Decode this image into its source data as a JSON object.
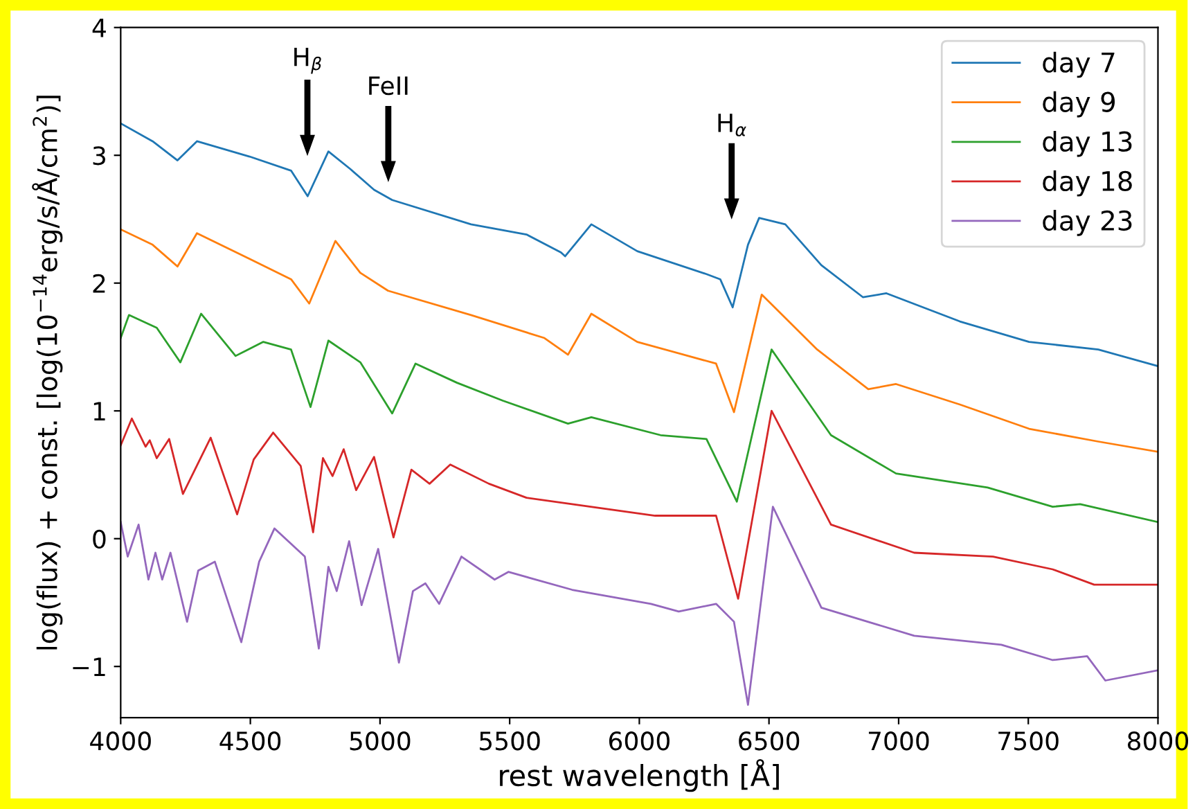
{
  "chart_data": {
    "type": "line",
    "xlabel": "rest wavelength [Å]",
    "ylabel": "log(flux) + const. [log(10$^{−14}$erg/s/Å/cm$^{2}$)]",
    "xlim": [
      4000,
      8000
    ],
    "xticks": [
      4000,
      4500,
      5000,
      5500,
      6000,
      6500,
      7000,
      7500,
      8000
    ],
    "ylim": [
      -1.4,
      4
    ],
    "yticks": [
      {
        "value": -1,
        "label": "−1"
      },
      0,
      1,
      2,
      3,
      4
    ],
    "grid": false,
    "legend": "top right",
    "line_style": "solid",
    "marker": "none",
    "annotations": [
      "H$_{β}$",
      "FeII",
      "H$_{α}$"
    ],
    "series": [
      {
        "name": "day 7",
        "color": "#1f77b4",
        "x": [
          4000,
          4123,
          4219,
          4294,
          4497,
          4657,
          4721,
          4801,
          4887,
          4977,
          5047,
          5351,
          5565,
          5698,
          5714,
          5815,
          5992,
          6259,
          6312,
          6360,
          6419,
          6462,
          6563,
          6702,
          6862,
          6953,
          7236,
          7503,
          7770,
          8000
        ],
        "values": [
          3.25,
          3.11,
          2.96,
          3.11,
          2.99,
          2.88,
          2.68,
          3.03,
          2.89,
          2.73,
          2.65,
          2.46,
          2.38,
          2.24,
          2.21,
          2.46,
          2.25,
          2.07,
          2.03,
          1.81,
          2.3,
          2.51,
          2.46,
          2.14,
          1.89,
          1.92,
          1.7,
          1.54,
          1.48,
          1.35
        ]
      },
      {
        "name": "day 9",
        "color": "#ff7f0e",
        "x": [
          4000,
          4123,
          4219,
          4294,
          4497,
          4657,
          4727,
          4828,
          4924,
          5031,
          5351,
          5634,
          5725,
          5815,
          5992,
          6296,
          6365,
          6472,
          6686,
          6883,
          6990,
          7236,
          7503,
          7770,
          8000
        ],
        "values": [
          2.42,
          2.3,
          2.13,
          2.39,
          2.19,
          2.03,
          1.84,
          2.33,
          2.08,
          1.94,
          1.75,
          1.57,
          1.44,
          1.76,
          1.54,
          1.37,
          0.99,
          1.91,
          1.48,
          1.17,
          1.21,
          1.05,
          0.86,
          0.76,
          0.68
        ]
      },
      {
        "name": "day 13",
        "color": "#2ca02c",
        "x": [
          4000,
          4032,
          4139,
          4230,
          4310,
          4443,
          4550,
          4657,
          4732,
          4801,
          4924,
          5047,
          5137,
          5297,
          5474,
          5725,
          5815,
          6082,
          6259,
          6376,
          6510,
          6739,
          6990,
          7343,
          7594,
          7700,
          8000
        ],
        "values": [
          1.57,
          1.75,
          1.65,
          1.38,
          1.76,
          1.43,
          1.54,
          1.48,
          1.03,
          1.55,
          1.38,
          0.98,
          1.37,
          1.22,
          1.08,
          0.9,
          0.95,
          0.81,
          0.78,
          0.29,
          1.48,
          0.81,
          0.51,
          0.4,
          0.25,
          0.27,
          0.13
        ]
      },
      {
        "name": "day 18",
        "color": "#d62728",
        "x": [
          4000,
          4043,
          4096,
          4112,
          4139,
          4187,
          4240,
          4347,
          4449,
          4513,
          4588,
          4694,
          4742,
          4780,
          4817,
          4860,
          4908,
          4977,
          5052,
          5121,
          5191,
          5271,
          5420,
          5565,
          5741,
          6061,
          6296,
          6381,
          6510,
          6739,
          7060,
          7364,
          7594,
          7754,
          8000
        ],
        "values": [
          0.73,
          0.94,
          0.72,
          0.77,
          0.63,
          0.78,
          0.35,
          0.79,
          0.19,
          0.62,
          0.83,
          0.57,
          0.05,
          0.63,
          0.49,
          0.7,
          0.38,
          0.64,
          0.01,
          0.54,
          0.43,
          0.58,
          0.43,
          0.32,
          0.27,
          0.18,
          0.18,
          -0.47,
          1.0,
          0.11,
          -0.11,
          -0.14,
          -0.24,
          -0.36,
          -0.36
        ]
      },
      {
        "name": "day 23",
        "color": "#9467bd",
        "x": [
          4000,
          4027,
          4069,
          4107,
          4134,
          4160,
          4192,
          4256,
          4299,
          4363,
          4465,
          4534,
          4593,
          4710,
          4764,
          4801,
          4833,
          4881,
          4929,
          4993,
          5073,
          5127,
          5175,
          5228,
          5314,
          5442,
          5495,
          5741,
          6045,
          6152,
          6296,
          6365,
          6419,
          6515,
          6702,
          7060,
          7396,
          7594,
          7727,
          7797,
          8000
        ],
        "values": [
          0.13,
          -0.14,
          0.11,
          -0.32,
          -0.11,
          -0.32,
          -0.11,
          -0.65,
          -0.25,
          -0.18,
          -0.81,
          -0.18,
          0.08,
          -0.14,
          -0.86,
          -0.22,
          -0.41,
          -0.02,
          -0.52,
          -0.08,
          -0.97,
          -0.41,
          -0.35,
          -0.51,
          -0.14,
          -0.32,
          -0.26,
          -0.4,
          -0.51,
          -0.57,
          -0.51,
          -0.65,
          -1.3,
          0.25,
          -0.54,
          -0.76,
          -0.83,
          -0.95,
          -0.92,
          -1.11,
          -1.03
        ]
      }
    ]
  }
}
